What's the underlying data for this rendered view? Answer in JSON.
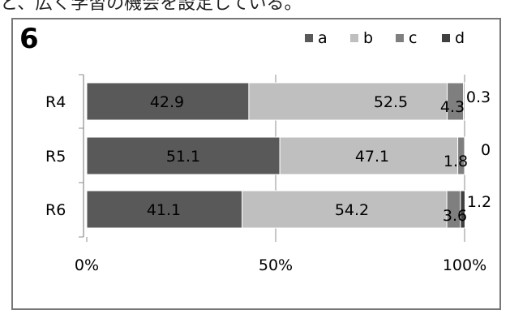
{
  "header": {
    "top_text": "と、広く学習の機会を設定している。",
    "chart_number": "6"
  },
  "chart_data": {
    "type": "bar",
    "orientation": "horizontal",
    "stacked": "percent",
    "categories": [
      "R4",
      "R5",
      "R6"
    ],
    "series": [
      {
        "name": "a",
        "values": [
          42.9,
          51.1,
          41.1
        ],
        "color": "#595959"
      },
      {
        "name": "b",
        "values": [
          52.5,
          47.1,
          54.2
        ],
        "color": "#bfbfbf"
      },
      {
        "name": "c",
        "values": [
          4.3,
          1.8,
          3.6
        ],
        "color": "#7f7f7f"
      },
      {
        "name": "d",
        "values": [
          0.3,
          0,
          1.2
        ],
        "color": "#404040"
      }
    ],
    "x_ticks": [
      "0%",
      "50%",
      "100%"
    ],
    "xlim": [
      0,
      100
    ],
    "legend_position": "top-right",
    "grid": true
  }
}
